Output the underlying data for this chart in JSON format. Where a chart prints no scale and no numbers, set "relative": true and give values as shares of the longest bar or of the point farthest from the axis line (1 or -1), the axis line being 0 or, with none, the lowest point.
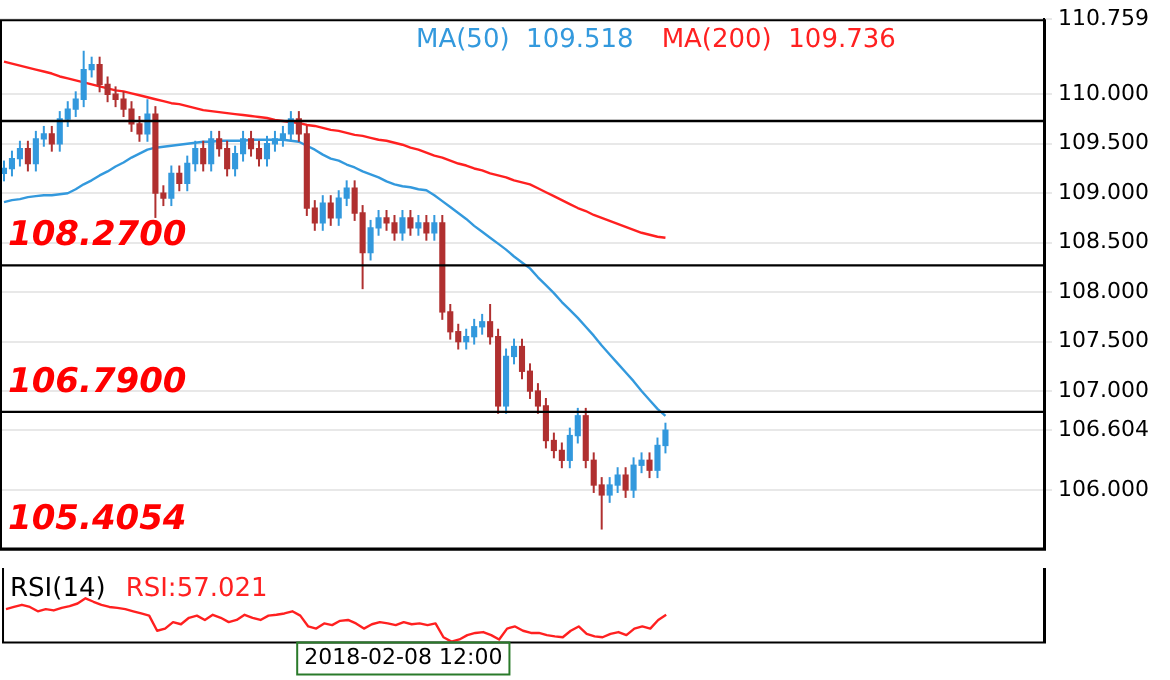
{
  "chart_data": [
    {
      "type": "candlestick",
      "categories": [
        null,
        null,
        null,
        null,
        null,
        null,
        null,
        null,
        null,
        null,
        null,
        null,
        null,
        null,
        null,
        null,
        null,
        null,
        null,
        null,
        null,
        null,
        null,
        null,
        null,
        null,
        null,
        null,
        null,
        null,
        null,
        null,
        null,
        null,
        null,
        null,
        null,
        null,
        null,
        null,
        null,
        null,
        null,
        null,
        null,
        null,
        null,
        null,
        null,
        null,
        null,
        null,
        null,
        null,
        null,
        null,
        null,
        null,
        null,
        null,
        null,
        null,
        null,
        null,
        null,
        null,
        null,
        null,
        null,
        null,
        null,
        null,
        null,
        null,
        null,
        null,
        null,
        null,
        null,
        null,
        null,
        null,
        null,
        null,
        null,
        null,
        null,
        null,
        null,
        null,
        null,
        null,
        null,
        null,
        null,
        null,
        null,
        null,
        null,
        null,
        null,
        null,
        null,
        null,
        null,
        null,
        null,
        null,
        null,
        null,
        null,
        null,
        null,
        null,
        null,
        null,
        null,
        null,
        null,
        null,
        null,
        null,
        null,
        null,
        null,
        null,
        null,
        null,
        null,
        null,
        null
      ],
      "ohlc": [
        [
          109.2,
          109.33,
          109.12,
          109.25
        ],
        [
          109.25,
          109.43,
          109.17,
          109.35
        ],
        [
          109.35,
          109.53,
          109.27,
          109.45
        ],
        [
          109.45,
          109.53,
          109.22,
          109.3
        ],
        [
          109.3,
          109.63,
          109.22,
          109.55
        ],
        [
          109.55,
          109.68,
          109.47,
          109.6
        ],
        [
          109.6,
          109.68,
          109.42,
          109.5
        ],
        [
          109.5,
          109.83,
          109.42,
          109.75
        ],
        [
          109.75,
          109.93,
          109.67,
          109.85
        ],
        [
          109.85,
          110.03,
          109.77,
          109.95
        ],
        [
          109.95,
          110.44,
          109.87,
          110.25
        ],
        [
          110.25,
          110.38,
          110.17,
          110.3
        ],
        [
          110.3,
          110.38,
          110.02,
          110.1
        ],
        [
          110.1,
          110.18,
          109.92,
          110.0
        ],
        [
          110.0,
          110.08,
          109.87,
          109.95
        ],
        [
          109.95,
          110.03,
          109.77,
          109.85
        ],
        [
          109.85,
          109.93,
          109.62,
          109.7
        ],
        [
          109.7,
          109.78,
          109.52,
          109.6
        ],
        [
          109.6,
          109.95,
          109.52,
          109.8
        ],
        [
          109.8,
          109.88,
          108.75,
          109.0
        ],
        [
          109.0,
          109.08,
          108.87,
          108.95
        ],
        [
          108.95,
          109.28,
          108.87,
          109.2
        ],
        [
          109.2,
          109.28,
          109.02,
          109.1
        ],
        [
          109.1,
          109.38,
          109.02,
          109.3
        ],
        [
          109.3,
          109.53,
          109.22,
          109.45
        ],
        [
          109.45,
          109.53,
          109.22,
          109.3
        ],
        [
          109.3,
          109.63,
          109.22,
          109.55
        ],
        [
          109.55,
          109.63,
          109.37,
          109.45
        ],
        [
          109.45,
          109.53,
          109.17,
          109.25
        ],
        [
          109.25,
          109.48,
          109.17,
          109.4
        ],
        [
          109.4,
          109.63,
          109.32,
          109.55
        ],
        [
          109.55,
          109.63,
          109.37,
          109.45
        ],
        [
          109.45,
          109.53,
          109.27,
          109.35
        ],
        [
          109.35,
          109.58,
          109.27,
          109.5
        ],
        [
          109.5,
          109.63,
          109.42,
          109.55
        ],
        [
          109.55,
          109.68,
          109.47,
          109.6
        ],
        [
          109.6,
          109.83,
          109.52,
          109.75
        ],
        [
          109.75,
          109.83,
          109.52,
          109.6
        ],
        [
          109.6,
          109.68,
          108.77,
          108.85
        ],
        [
          108.85,
          108.93,
          108.62,
          108.7
        ],
        [
          108.7,
          108.98,
          108.62,
          108.9
        ],
        [
          108.9,
          108.98,
          108.67,
          108.75
        ],
        [
          108.75,
          109.03,
          108.67,
          108.95
        ],
        [
          108.95,
          109.13,
          108.87,
          109.05
        ],
        [
          109.05,
          109.13,
          108.72,
          108.8
        ],
        [
          108.8,
          108.88,
          108.03,
          108.4
        ],
        [
          108.4,
          108.73,
          108.32,
          108.65
        ],
        [
          108.65,
          108.83,
          108.57,
          108.75
        ],
        [
          108.75,
          108.83,
          108.62,
          108.7
        ],
        [
          108.7,
          108.78,
          108.52,
          108.6
        ],
        [
          108.6,
          108.83,
          108.52,
          108.75
        ],
        [
          108.75,
          108.83,
          108.57,
          108.65
        ],
        [
          108.65,
          108.78,
          108.57,
          108.7
        ],
        [
          108.7,
          108.78,
          108.52,
          108.6
        ],
        [
          108.6,
          108.78,
          108.52,
          108.7
        ],
        [
          108.7,
          108.78,
          107.72,
          107.8
        ],
        [
          107.8,
          107.88,
          107.52,
          107.6
        ],
        [
          107.6,
          107.68,
          107.42,
          107.5
        ],
        [
          107.5,
          107.63,
          107.42,
          107.55
        ],
        [
          107.55,
          107.73,
          107.47,
          107.65
        ],
        [
          107.65,
          107.78,
          107.57,
          107.7
        ],
        [
          107.7,
          107.88,
          107.47,
          107.55
        ],
        [
          107.55,
          107.63,
          106.77,
          106.85
        ],
        [
          106.85,
          107.43,
          106.77,
          107.35
        ],
        [
          107.35,
          107.53,
          107.27,
          107.45
        ],
        [
          107.45,
          107.53,
          107.12,
          107.2
        ],
        [
          107.2,
          107.28,
          106.92,
          107.0
        ],
        [
          107.0,
          107.08,
          106.77,
          106.85
        ],
        [
          106.85,
          106.93,
          106.42,
          106.5
        ],
        [
          106.5,
          106.58,
          106.32,
          106.4
        ],
        [
          106.4,
          106.48,
          106.22,
          106.3
        ],
        [
          106.3,
          106.63,
          106.22,
          106.55
        ],
        [
          106.55,
          106.83,
          106.47,
          106.75
        ],
        [
          106.75,
          106.83,
          106.22,
          106.3
        ],
        [
          106.3,
          106.38,
          105.97,
          106.05
        ],
        [
          106.05,
          106.13,
          105.6,
          105.95
        ],
        [
          105.95,
          106.13,
          105.87,
          106.05
        ],
        [
          106.05,
          106.23,
          105.97,
          106.15
        ],
        [
          106.15,
          106.23,
          105.92,
          106.0
        ],
        [
          106.0,
          106.33,
          105.92,
          106.25
        ],
        [
          106.25,
          106.38,
          106.17,
          106.3
        ],
        [
          106.3,
          106.38,
          106.12,
          106.2
        ],
        [
          106.2,
          106.53,
          106.12,
          106.45
        ],
        [
          106.45,
          106.68,
          106.37,
          106.604
        ],
        null,
        null,
        null,
        null,
        null,
        null,
        null,
        null,
        null,
        null,
        null,
        null,
        null,
        null,
        null,
        null,
        null,
        null,
        null,
        null,
        null,
        null,
        null,
        null,
        null,
        null,
        null,
        null,
        null,
        null,
        null,
        null,
        null,
        null,
        null,
        null,
        null,
        null,
        null,
        null,
        null,
        null,
        null,
        null,
        null,
        null,
        null
      ],
      "series": [
        {
          "type": "line",
          "name": "MA(50)  109.518",
          "color": "#3399dd",
          "values": [
            108.91,
            108.93,
            108.94,
            108.96,
            108.97,
            108.98,
            108.98,
            108.99,
            109.0,
            109.04,
            109.09,
            109.13,
            109.18,
            109.22,
            109.27,
            109.31,
            109.36,
            109.4,
            109.44,
            109.46,
            109.47,
            109.48,
            109.49,
            109.5,
            109.51,
            109.52,
            109.52,
            109.53,
            109.53,
            109.53,
            109.53,
            109.54,
            109.54,
            109.54,
            109.54,
            109.54,
            109.53,
            109.52,
            109.48,
            109.44,
            109.39,
            109.35,
            109.33,
            109.29,
            109.26,
            109.22,
            109.19,
            109.16,
            109.12,
            109.09,
            109.07,
            109.06,
            109.04,
            109.03,
            108.98,
            108.92,
            108.86,
            108.8,
            108.74,
            108.67,
            108.61,
            108.55,
            108.49,
            108.43,
            108.36,
            108.3,
            108.24,
            108.15,
            108.07,
            107.99,
            107.9,
            107.82,
            107.74,
            107.65,
            107.56,
            107.46,
            107.37,
            107.28,
            107.19,
            107.1,
            107.0,
            106.91,
            106.82,
            106.75,
            null,
            null,
            null,
            null,
            null,
            null,
            null,
            null,
            null,
            null,
            null,
            null,
            null,
            null,
            null,
            null,
            null,
            null,
            null,
            null,
            null,
            null,
            null,
            null,
            null,
            null,
            null,
            null,
            null,
            null,
            null,
            null,
            null,
            null,
            null,
            null,
            null,
            null,
            null,
            null,
            null,
            null,
            null,
            null,
            null,
            null,
            null
          ]
        },
        {
          "type": "line",
          "name": "MA(200)  109.736",
          "color": "#ff2020",
          "values": [
            110.33,
            110.31,
            110.29,
            110.27,
            110.25,
            110.23,
            110.21,
            110.18,
            110.16,
            110.14,
            110.12,
            110.1,
            110.08,
            110.06,
            110.04,
            110.03,
            110.01,
            109.99,
            109.97,
            109.95,
            109.93,
            109.91,
            109.9,
            109.88,
            109.86,
            109.84,
            109.83,
            109.82,
            109.81,
            109.8,
            109.79,
            109.78,
            109.77,
            109.76,
            109.74,
            109.73,
            109.72,
            109.71,
            109.69,
            109.68,
            109.66,
            109.64,
            109.63,
            109.61,
            109.59,
            109.58,
            109.56,
            109.54,
            109.53,
            109.51,
            109.49,
            109.46,
            109.44,
            109.41,
            109.38,
            109.36,
            109.33,
            109.3,
            109.28,
            109.25,
            109.23,
            109.2,
            109.18,
            109.16,
            109.13,
            109.11,
            109.09,
            109.05,
            109.01,
            108.97,
            108.93,
            108.89,
            108.85,
            108.82,
            108.78,
            108.75,
            108.72,
            108.69,
            108.66,
            108.63,
            108.6,
            108.58,
            108.56,
            108.55,
            null,
            null,
            null,
            null,
            null,
            null,
            null,
            null,
            null,
            null,
            null,
            null,
            null,
            null,
            null,
            null,
            null,
            null,
            null,
            null,
            null,
            null,
            null,
            null,
            null,
            null,
            null,
            null,
            null,
            null,
            null,
            null,
            null,
            null,
            null,
            null,
            null,
            null,
            null,
            null,
            null,
            null,
            null,
            null,
            null,
            null,
            null
          ]
        }
      ],
      "ylim": [
        105.4054,
        110.759
      ],
      "yticks": [
        {
          "value": 110.759,
          "label": "110.759"
        },
        {
          "value": 110,
          "label": "110.000"
        },
        {
          "value": 109.5,
          "label": "109.500"
        },
        {
          "value": 109,
          "label": "109.000"
        },
        {
          "value": 108.5,
          "label": "108.500"
        },
        {
          "value": 108,
          "label": "108.000"
        },
        {
          "value": 107.5,
          "label": "107.500"
        },
        {
          "value": 107,
          "label": "107.000"
        },
        {
          "value": 106.604,
          "label": "106.604"
        },
        {
          "value": 106,
          "label": "106.000"
        }
      ],
      "ref_lines": [
        {
          "axis": "y",
          "value": 109.73,
          "color": "#000000"
        },
        {
          "axis": "y",
          "value": 108.27,
          "label": "108.2700",
          "color": "#000000"
        },
        {
          "axis": "y",
          "value": 106.79,
          "label": "106.7900",
          "color": "#000000"
        },
        {
          "axis": "y",
          "value": 105.4054,
          "label": "105.4054",
          "color": "#000000"
        }
      ],
      "grid": "y",
      "legend": "top",
      "tick_labels": "y"
    },
    {
      "type": "line",
      "title": "RSI(14)",
      "relative": true,
      "tick_labels": "x",
      "categories": [
        null,
        null,
        null,
        null,
        null,
        null,
        null,
        null,
        null,
        null,
        null,
        null,
        null,
        null,
        null,
        null,
        null,
        null,
        null,
        null,
        null,
        null,
        null,
        null,
        null,
        null,
        null,
        null,
        null,
        null,
        null,
        null,
        null,
        null,
        null,
        null,
        null,
        null,
        null,
        null,
        null,
        null,
        null,
        null,
        null,
        null,
        null,
        null,
        null,
        null,
        null,
        null,
        null,
        null,
        null,
        null,
        null,
        null,
        null,
        null,
        null,
        null,
        null,
        null,
        null,
        null,
        null,
        null,
        null,
        null,
        null,
        null,
        null,
        null,
        null,
        null,
        null,
        null,
        null,
        null,
        null,
        null,
        null,
        null,
        null,
        null,
        null,
        null,
        null,
        null,
        null,
        null,
        null,
        null,
        null,
        null,
        null,
        null,
        null,
        null,
        null,
        null,
        null,
        null,
        null,
        null,
        null,
        null,
        null,
        null,
        null,
        null,
        null,
        null,
        null,
        null,
        null,
        null,
        null,
        null,
        null,
        null,
        null,
        null,
        null,
        null,
        null,
        null,
        null,
        null,
        null
      ],
      "series": [
        {
          "name": "RSI:57.021",
          "color": "#ff2020",
          "values": [
            0.75,
            0.8,
            0.85,
            0.8,
            0.7,
            0.75,
            0.72,
            0.78,
            0.82,
            0.88,
            1.0,
            0.92,
            0.85,
            0.8,
            0.78,
            0.75,
            0.7,
            0.65,
            0.6,
            0.25,
            0.3,
            0.45,
            0.4,
            0.55,
            0.6,
            0.5,
            0.62,
            0.55,
            0.45,
            0.5,
            0.62,
            0.55,
            0.5,
            0.6,
            0.62,
            0.65,
            0.7,
            0.6,
            0.35,
            0.3,
            0.42,
            0.38,
            0.48,
            0.5,
            0.42,
            0.3,
            0.4,
            0.45,
            0.42,
            0.38,
            0.45,
            0.4,
            0.42,
            0.38,
            0.42,
            0.1,
            0.0,
            0.05,
            0.15,
            0.2,
            0.22,
            0.15,
            0.05,
            0.3,
            0.35,
            0.25,
            0.2,
            0.2,
            0.15,
            0.12,
            0.1,
            0.25,
            0.35,
            0.18,
            0.12,
            0.1,
            0.18,
            0.22,
            0.15,
            0.3,
            0.35,
            0.3,
            0.5,
            0.62,
            null,
            null,
            null,
            null,
            null,
            null,
            null,
            null,
            null,
            null,
            null,
            null,
            null,
            null,
            null,
            null,
            null,
            null,
            null,
            null,
            null,
            null,
            null,
            null,
            null,
            null,
            null,
            null,
            null,
            null,
            null,
            null,
            null,
            null,
            null,
            null,
            null,
            null,
            null,
            null,
            null,
            null,
            null,
            null,
            null,
            null,
            null
          ]
        }
      ],
      "annotations": [
        "2018-02-08 12:00"
      ],
      "legend": "top"
    }
  ]
}
